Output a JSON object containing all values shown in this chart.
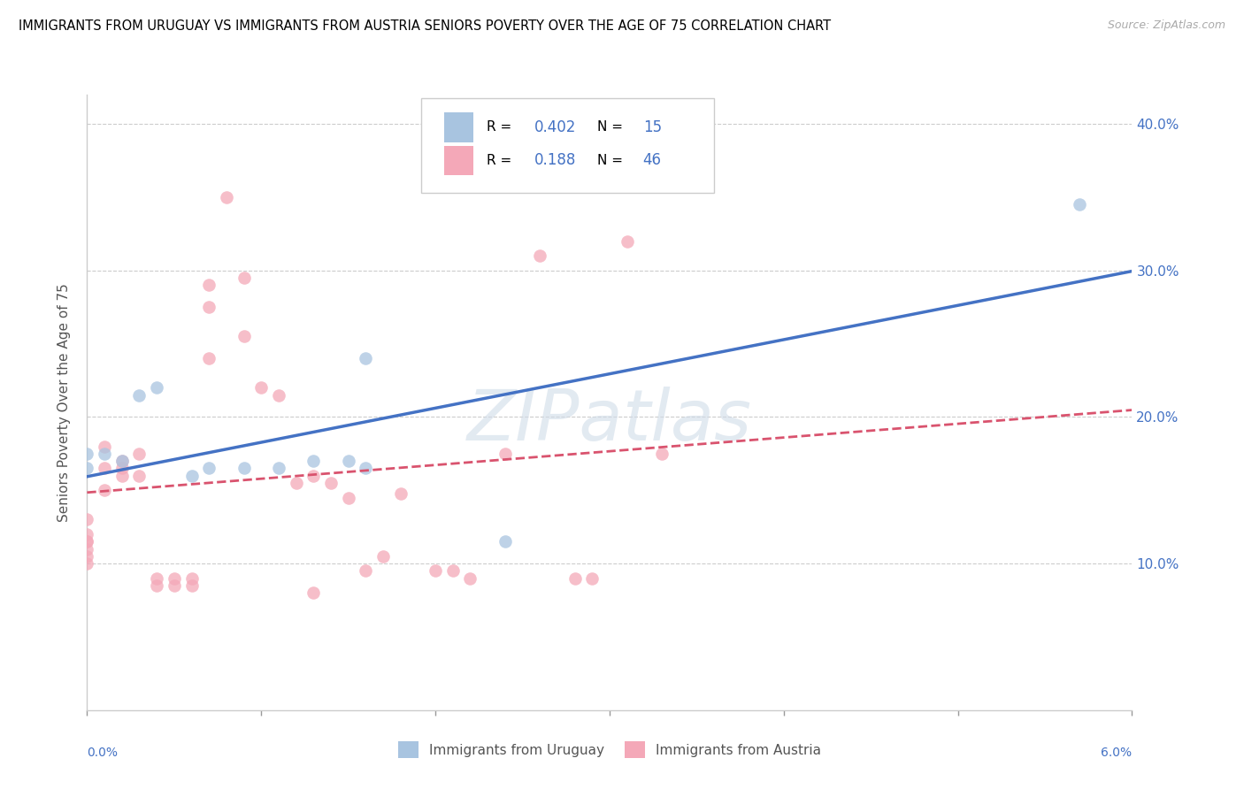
{
  "title": "IMMIGRANTS FROM URUGUAY VS IMMIGRANTS FROM AUSTRIA SENIORS POVERTY OVER THE AGE OF 75 CORRELATION CHART",
  "source": "Source: ZipAtlas.com",
  "ylabel": "Seniors Poverty Over the Age of 75",
  "watermark": "ZIPatlas",
  "xlim": [
    0.0,
    0.06
  ],
  "ylim": [
    0.0,
    0.42
  ],
  "color_uruguay": "#a8c4e0",
  "color_austria": "#f4a8b8",
  "color_line_uruguay": "#4472c4",
  "color_line_austria": "#d9536e",
  "scatter_alpha": 0.75,
  "scatter_size": 110,
  "uruguay_x": [
    0.0,
    0.0,
    0.001,
    0.002,
    0.003,
    0.004,
    0.006,
    0.007,
    0.009,
    0.011,
    0.013,
    0.015,
    0.016,
    0.016,
    0.024,
    0.057
  ],
  "uruguay_y": [
    0.165,
    0.175,
    0.175,
    0.17,
    0.215,
    0.22,
    0.16,
    0.165,
    0.165,
    0.165,
    0.17,
    0.17,
    0.165,
    0.24,
    0.115,
    0.345
  ],
  "austria_x": [
    0.0,
    0.0,
    0.0,
    0.0,
    0.0,
    0.0,
    0.0,
    0.001,
    0.001,
    0.001,
    0.002,
    0.002,
    0.002,
    0.003,
    0.003,
    0.004,
    0.004,
    0.005,
    0.005,
    0.006,
    0.006,
    0.007,
    0.007,
    0.007,
    0.008,
    0.009,
    0.009,
    0.01,
    0.011,
    0.012,
    0.013,
    0.013,
    0.014,
    0.015,
    0.016,
    0.017,
    0.018,
    0.02,
    0.021,
    0.022,
    0.024,
    0.026,
    0.028,
    0.029,
    0.031,
    0.033
  ],
  "austria_y": [
    0.115,
    0.12,
    0.13,
    0.115,
    0.11,
    0.105,
    0.1,
    0.18,
    0.165,
    0.15,
    0.17,
    0.165,
    0.16,
    0.175,
    0.16,
    0.09,
    0.085,
    0.085,
    0.09,
    0.085,
    0.09,
    0.29,
    0.275,
    0.24,
    0.35,
    0.295,
    0.255,
    0.22,
    0.215,
    0.155,
    0.16,
    0.08,
    0.155,
    0.145,
    0.095,
    0.105,
    0.148,
    0.095,
    0.095,
    0.09,
    0.175,
    0.31,
    0.09,
    0.09,
    0.32,
    0.175
  ]
}
